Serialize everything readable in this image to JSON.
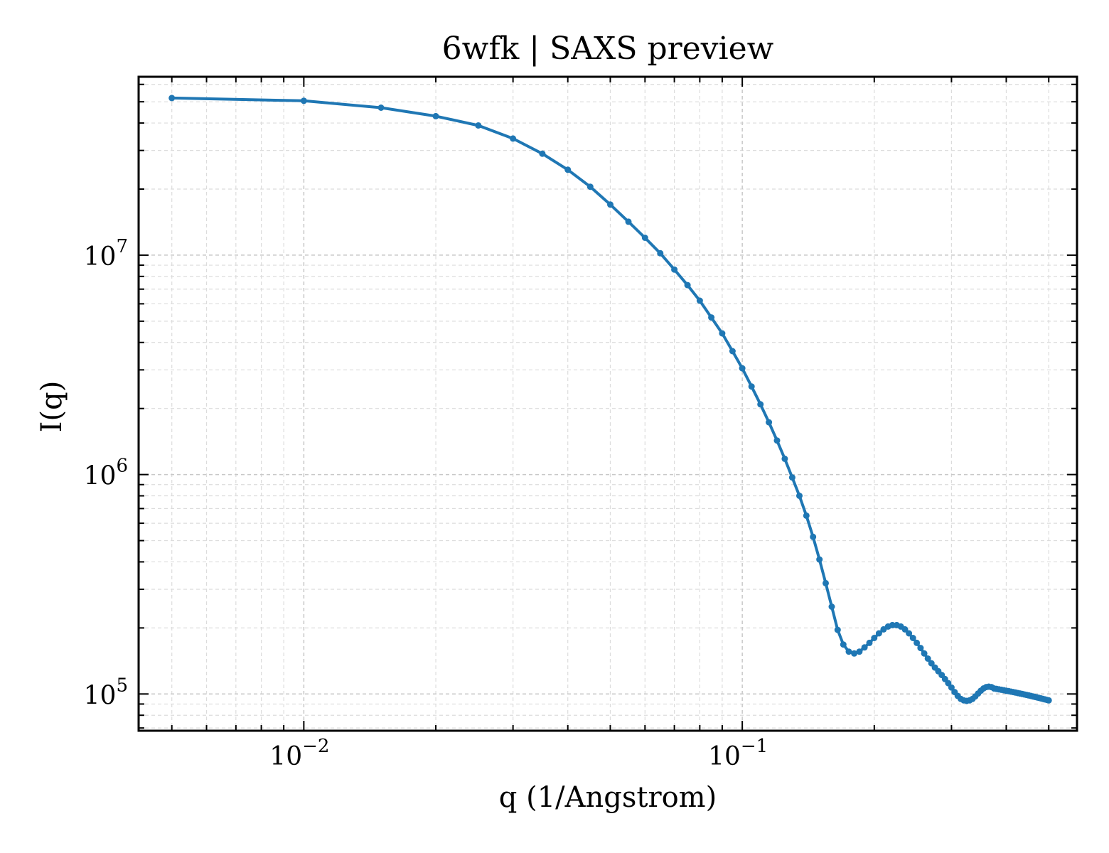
{
  "chart_data": {
    "type": "line",
    "title": "6wfk | SAXS preview",
    "xlabel": "q (1/Angstrom)",
    "ylabel": "I(q)",
    "xscale": "log",
    "yscale": "log",
    "xlim": [
      0.0042,
      0.58
    ],
    "ylim": [
      68000,
      65000000
    ],
    "grid": true,
    "legend": "none",
    "line_color": "#1f77b4",
    "x_ticks": [
      {
        "value": 0.01,
        "base": "10",
        "exp": "−2"
      },
      {
        "value": 0.1,
        "base": "10",
        "exp": "−1"
      }
    ],
    "y_ticks": [
      {
        "value": 100000,
        "base": "10",
        "exp": "5"
      },
      {
        "value": 1000000,
        "base": "10",
        "exp": "6"
      },
      {
        "value": 10000000,
        "base": "10",
        "exp": "7"
      }
    ],
    "series": [
      {
        "x": [
          0.005,
          0.01,
          0.015,
          0.02,
          0.025,
          0.03,
          0.035,
          0.04,
          0.045,
          0.05,
          0.055,
          0.06,
          0.065,
          0.07,
          0.075,
          0.08,
          0.085,
          0.09,
          0.095,
          0.1,
          0.105,
          0.11,
          0.115,
          0.12,
          0.125,
          0.13,
          0.135,
          0.14,
          0.145,
          0.15,
          0.155,
          0.16,
          0.165,
          0.17,
          0.175,
          0.18,
          0.185,
          0.19,
          0.195,
          0.2,
          0.205,
          0.21,
          0.215,
          0.22,
          0.225,
          0.23,
          0.235,
          0.24,
          0.245,
          0.25,
          0.255,
          0.26,
          0.265,
          0.27,
          0.275,
          0.28,
          0.285,
          0.29,
          0.295,
          0.3,
          0.305,
          0.31,
          0.315,
          0.32,
          0.325,
          0.33,
          0.335,
          0.34,
          0.345,
          0.35,
          0.355,
          0.36,
          0.365,
          0.37,
          0.375,
          0.38,
          0.385,
          0.39,
          0.395,
          0.4,
          0.405,
          0.41,
          0.415,
          0.42,
          0.425,
          0.43,
          0.435,
          0.44,
          0.445,
          0.45,
          0.455,
          0.46,
          0.465,
          0.47,
          0.475,
          0.48,
          0.485,
          0.49,
          0.495,
          0.5
        ],
        "y": [
          52000000,
          50500000,
          47000000,
          43000000,
          39000000,
          34000000,
          29000000,
          24500000,
          20500000,
          17000000,
          14200000,
          12000000,
          10200000,
          8600000,
          7300000,
          6200000,
          5200000,
          4400000,
          3650000,
          3050000,
          2520000,
          2090000,
          1730000,
          1430000,
          1180000,
          970000,
          800000,
          650000,
          520000,
          410000,
          320000,
          250000,
          196000,
          168000,
          156000,
          153000,
          156000,
          163000,
          171000,
          180000,
          189000,
          197000,
          203000,
          206000,
          206000,
          203000,
          197000,
          189000,
          180000,
          171000,
          162000,
          153000,
          145000,
          138000,
          132000,
          127000,
          122000,
          117000,
          112000,
          107000,
          102000,
          98000,
          95000,
          93500,
          93000,
          93500,
          95000,
          97500,
          100500,
          103500,
          106000,
          107500,
          108000,
          107500,
          106000,
          105500,
          105000,
          104500,
          104000,
          103500,
          103000,
          102500,
          102000,
          101500,
          101000,
          100500,
          100000,
          99500,
          99000,
          98500,
          98000,
          97500,
          97000,
          96500,
          96000,
          95500,
          95000,
          94500,
          94000,
          93500
        ]
      }
    ]
  }
}
